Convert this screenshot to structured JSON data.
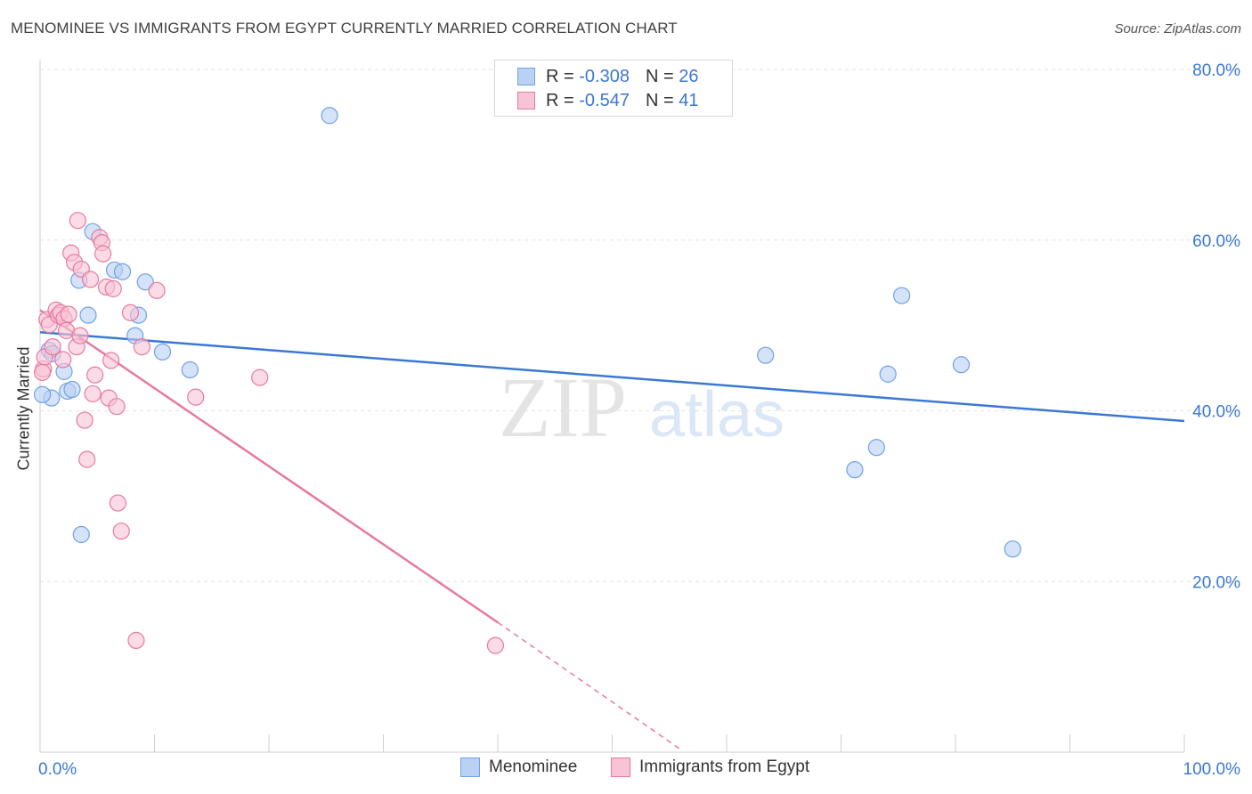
{
  "title": "MENOMINEE VS IMMIGRANTS FROM EGYPT CURRENTLY MARRIED CORRELATION CHART",
  "source": "Source: ZipAtlas.com",
  "watermark": {
    "zip": "ZIP",
    "atlas": "atlas"
  },
  "legend": {
    "r_label": "R =",
    "n_label": "N =",
    "series": [
      {
        "name": "Menominee",
        "r": "-0.308",
        "n": "26",
        "color": "#6fa1e6",
        "fill": "#b9d1f3"
      },
      {
        "name": "Immigrants from Egypt",
        "r": "-0.547",
        "n": "41",
        "color": "#e8799f",
        "fill": "#f8c3d4"
      }
    ]
  },
  "chart_data": {
    "type": "scatter",
    "title": "MENOMINEE VS IMMIGRANTS FROM EGYPT CURRENTLY MARRIED CORRELATION CHART",
    "ylabel": "Currently Married",
    "xlabel": "",
    "xlim": [
      0,
      100
    ],
    "ylim": [
      0,
      80
    ],
    "x_tick_labels": [
      "0.0%",
      "100.0%"
    ],
    "y_ticks": [
      20,
      40,
      60,
      80
    ],
    "y_tick_labels": [
      "20.0%",
      "40.0%",
      "60.0%",
      "80.0%"
    ],
    "grid": true,
    "series": [
      {
        "name": "Menominee",
        "color": "#6fa1e6",
        "points": [
          [
            1.0,
            41.5
          ],
          [
            0.8,
            47.1
          ],
          [
            1.1,
            46.7
          ],
          [
            2.1,
            44.6
          ],
          [
            2.4,
            42.3
          ],
          [
            2.8,
            42.5
          ],
          [
            3.4,
            55.3
          ],
          [
            3.6,
            25.5
          ],
          [
            4.2,
            51.2
          ],
          [
            4.6,
            61.0
          ],
          [
            6.5,
            56.5
          ],
          [
            7.2,
            56.3
          ],
          [
            8.3,
            48.8
          ],
          [
            8.6,
            51.2
          ],
          [
            9.2,
            55.1
          ],
          [
            10.7,
            46.9
          ],
          [
            13.1,
            44.8
          ],
          [
            25.3,
            74.6
          ],
          [
            63.4,
            46.5
          ],
          [
            71.2,
            33.1
          ],
          [
            73.1,
            35.7
          ],
          [
            74.1,
            44.3
          ],
          [
            75.3,
            53.5
          ],
          [
            80.5,
            45.4
          ],
          [
            85.0,
            23.8
          ],
          [
            0.2,
            41.9
          ]
        ],
        "trend": {
          "x1": 0,
          "y1": 49.2,
          "x2": 100,
          "y2": 38.8
        }
      },
      {
        "name": "Immigrants from Egypt",
        "color": "#e8799f",
        "points": [
          [
            0.3,
            44.9
          ],
          [
            0.4,
            46.3
          ],
          [
            0.6,
            50.7
          ],
          [
            0.8,
            50.1
          ],
          [
            1.1,
            47.5
          ],
          [
            1.4,
            51.8
          ],
          [
            1.6,
            51.2
          ],
          [
            1.8,
            51.5
          ],
          [
            2.0,
            46.0
          ],
          [
            2.1,
            50.8
          ],
          [
            2.3,
            49.4
          ],
          [
            2.5,
            51.3
          ],
          [
            2.7,
            58.5
          ],
          [
            3.0,
            57.4
          ],
          [
            3.2,
            47.5
          ],
          [
            3.3,
            62.3
          ],
          [
            3.5,
            48.8
          ],
          [
            3.6,
            56.6
          ],
          [
            3.9,
            38.9
          ],
          [
            4.1,
            34.3
          ],
          [
            4.4,
            55.4
          ],
          [
            4.6,
            42.0
          ],
          [
            4.8,
            44.2
          ],
          [
            5.2,
            60.3
          ],
          [
            5.4,
            59.7
          ],
          [
            5.5,
            58.4
          ],
          [
            5.8,
            54.5
          ],
          [
            6.0,
            41.5
          ],
          [
            6.2,
            45.9
          ],
          [
            6.4,
            54.3
          ],
          [
            6.7,
            40.5
          ],
          [
            6.8,
            29.2
          ],
          [
            7.1,
            25.9
          ],
          [
            7.9,
            51.5
          ],
          [
            8.4,
            13.1
          ],
          [
            8.9,
            47.5
          ],
          [
            10.2,
            54.1
          ],
          [
            13.6,
            41.6
          ],
          [
            19.2,
            43.9
          ],
          [
            39.8,
            12.5
          ],
          [
            0.2,
            44.5
          ]
        ],
        "trend": {
          "x1": 0,
          "y1": 51.8,
          "x2": 40,
          "y2": 15.2
        },
        "trend_dashed": {
          "x1": 40,
          "y1": 15.2,
          "x2": 56,
          "y2": 0.3
        }
      }
    ]
  }
}
